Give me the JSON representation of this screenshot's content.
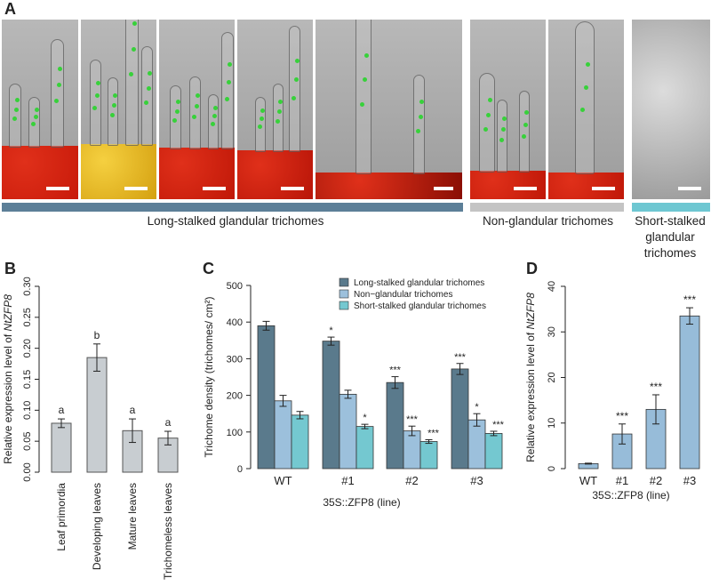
{
  "panel_labels": {
    "a": "A",
    "b": "B",
    "c": "C",
    "d": "D"
  },
  "panel_a": {
    "groups": [
      {
        "label": "Long-stalked glandular trichomes",
        "color": "#5c7f98"
      },
      {
        "label": "Non-glandular trichomes",
        "color": "#c4c4c4"
      },
      {
        "label": "Short-stalked glandular trichomes",
        "color": "#6ec7d2"
      }
    ]
  },
  "colors": {
    "panel_b_bar": "#c8cdd1",
    "long_stalked": "#5a7a8c",
    "non_glandular": "#9cc0dc",
    "short_stalked": "#74c8d0",
    "panel_d_bar": "#97bcd9"
  },
  "chart_data": [
    {
      "type": "bar",
      "panel": "B",
      "categories": [
        "Leaf primordia",
        "Developing leaves",
        "Mature leaves",
        "Trichomeless leaves"
      ],
      "values": [
        0.079,
        0.185,
        0.067,
        0.055
      ],
      "errors": [
        0.007,
        0.022,
        0.019,
        0.011
      ],
      "annotations": [
        "a",
        "b",
        "a",
        "a"
      ],
      "ylabel_prefix": "Relative expression level of ",
      "ylabel_gene": "NtZFP8",
      "ylim": [
        0,
        0.3
      ],
      "yticks": [
        "0.00",
        "0.05",
        "0.10",
        "0.15",
        "0.20",
        "0.25",
        "0.30"
      ]
    },
    {
      "type": "bar",
      "panel": "C",
      "categories": [
        "WT",
        "#1",
        "#2",
        "#3"
      ],
      "xlabel": "35S::ZFP8 (line)",
      "ylabel": "Trichome density (trichomes/ cm²)",
      "ylim": [
        0,
        500
      ],
      "yticks": [
        "0",
        "100",
        "200",
        "300",
        "400",
        "500"
      ],
      "legend_position": "top-right",
      "series": [
        {
          "name": "Long-stalked glandular trichomes",
          "values": [
            390,
            348,
            235,
            272
          ],
          "errors": [
            12,
            11,
            16,
            15
          ],
          "marks": [
            "",
            "*",
            "***",
            "***"
          ]
        },
        {
          "name": "Non−glandular trichomes",
          "values": [
            185,
            203,
            103,
            133
          ],
          "errors": [
            15,
            11,
            13,
            17
          ],
          "marks": [
            "",
            "",
            "***",
            "*"
          ]
        },
        {
          "name": "Short-stalked glandular trichomes",
          "values": [
            146,
            115,
            74,
            96
          ],
          "errors": [
            10,
            6,
            5,
            6
          ],
          "marks": [
            "",
            "*",
            "***",
            "***"
          ]
        }
      ]
    },
    {
      "type": "bar",
      "panel": "D",
      "categories": [
        "WT",
        "#1",
        "#2",
        "#3"
      ],
      "values": [
        1.1,
        7.6,
        13.0,
        33.5
      ],
      "errors": [
        0.1,
        2.2,
        3.2,
        1.8
      ],
      "marks": [
        "",
        "***",
        "***",
        "***"
      ],
      "xlabel": "35S::ZFP8 (line)",
      "ylabel_prefix": "Relative expression level of ",
      "ylabel_gene": "NtZFP8",
      "ylim": [
        0,
        40
      ],
      "yticks": [
        "0",
        "10",
        "20",
        "30",
        "40"
      ]
    }
  ]
}
